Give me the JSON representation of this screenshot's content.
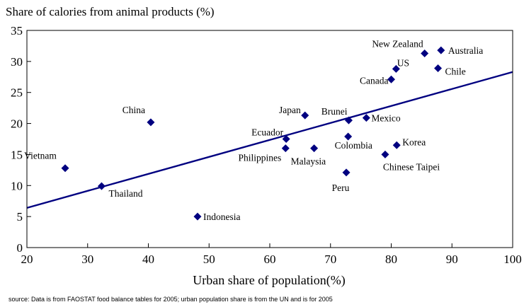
{
  "chart_data": {
    "type": "scatter",
    "title": "Share of calories from animal products (%)",
    "xlabel": "Urban share of population(%)",
    "ylabel": "",
    "xlim": [
      20,
      100
    ],
    "ylim": [
      0,
      35
    ],
    "x_ticks": [
      20,
      30,
      40,
      50,
      60,
      70,
      80,
      90,
      100
    ],
    "y_ticks": [
      0,
      5,
      10,
      15,
      20,
      25,
      30,
      35
    ],
    "grid": false,
    "legend": "none",
    "marker": "diamond",
    "marker_color": "#000080",
    "line_color": "#000080",
    "trendline": {
      "x": [
        20,
        100
      ],
      "y": [
        6.4,
        28.3
      ]
    },
    "points": [
      {
        "label": "Vietnam",
        "x": 26.3,
        "y": 12.8
      },
      {
        "label": "Thailand",
        "x": 32.3,
        "y": 9.9
      },
      {
        "label": "China",
        "x": 40.4,
        "y": 20.2
      },
      {
        "label": "Indonesia",
        "x": 48.1,
        "y": 5.0
      },
      {
        "label": "Ecuador",
        "x": 62.7,
        "y": 17.5
      },
      {
        "label": "Philippines",
        "x": 62.6,
        "y": 16.0
      },
      {
        "label": "Japan",
        "x": 65.8,
        "y": 21.3
      },
      {
        "label": "Malaysia",
        "x": 67.3,
        "y": 16.0
      },
      {
        "label": "Peru",
        "x": 72.6,
        "y": 12.1
      },
      {
        "label": "Brunei",
        "x": 73.0,
        "y": 20.5
      },
      {
        "label": "Colombia",
        "x": 72.9,
        "y": 17.9
      },
      {
        "label": "Mexico",
        "x": 75.9,
        "y": 20.9
      },
      {
        "label": "Chinese Taipei",
        "x": 79.0,
        "y": 15.0
      },
      {
        "label": "Korea",
        "x": 80.9,
        "y": 16.5
      },
      {
        "label": "Canada",
        "x": 80.0,
        "y": 27.1
      },
      {
        "label": "US",
        "x": 80.8,
        "y": 28.8
      },
      {
        "label": "New Zealand",
        "x": 85.5,
        "y": 31.3
      },
      {
        "label": "Chile",
        "x": 87.7,
        "y": 28.9
      },
      {
        "label": "Australia",
        "x": 88.2,
        "y": 31.8
      }
    ]
  },
  "source": "source: Data is from FAOSTAT food balance tables for 2005; urban population share is from the UN and is for 2005"
}
